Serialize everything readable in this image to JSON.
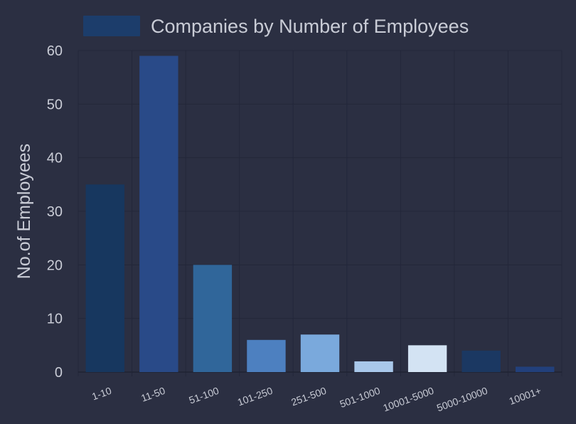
{
  "chart_data": {
    "type": "bar",
    "title": "",
    "legend": {
      "label": "Companies by Number of Employees",
      "color": "#1c3d6b",
      "placement": "top-center"
    },
    "ylabel": "No.of Employees",
    "xlabel": "",
    "categories": [
      "1-10",
      "11-50",
      "51-100",
      "101-250",
      "251-500",
      "501-1000",
      "10001-5000",
      "5000-10000",
      "10001+"
    ],
    "values": [
      35,
      59,
      20,
      6,
      7,
      2,
      5,
      4,
      1
    ],
    "colors": [
      "#17375f",
      "#294a88",
      "#30669a",
      "#4d80c0",
      "#7aa9dc",
      "#a9c8ea",
      "#d3e3f3",
      "#1b3862",
      "#22407c"
    ],
    "ylim": [
      0,
      60
    ],
    "yticks": [
      0,
      10,
      20,
      30,
      40,
      50,
      60
    ],
    "grid": true,
    "series": [
      {
        "name": "Companies by Number of Employees",
        "values": [
          35,
          59,
          20,
          6,
          7,
          2,
          5,
          4,
          1
        ]
      }
    ]
  }
}
